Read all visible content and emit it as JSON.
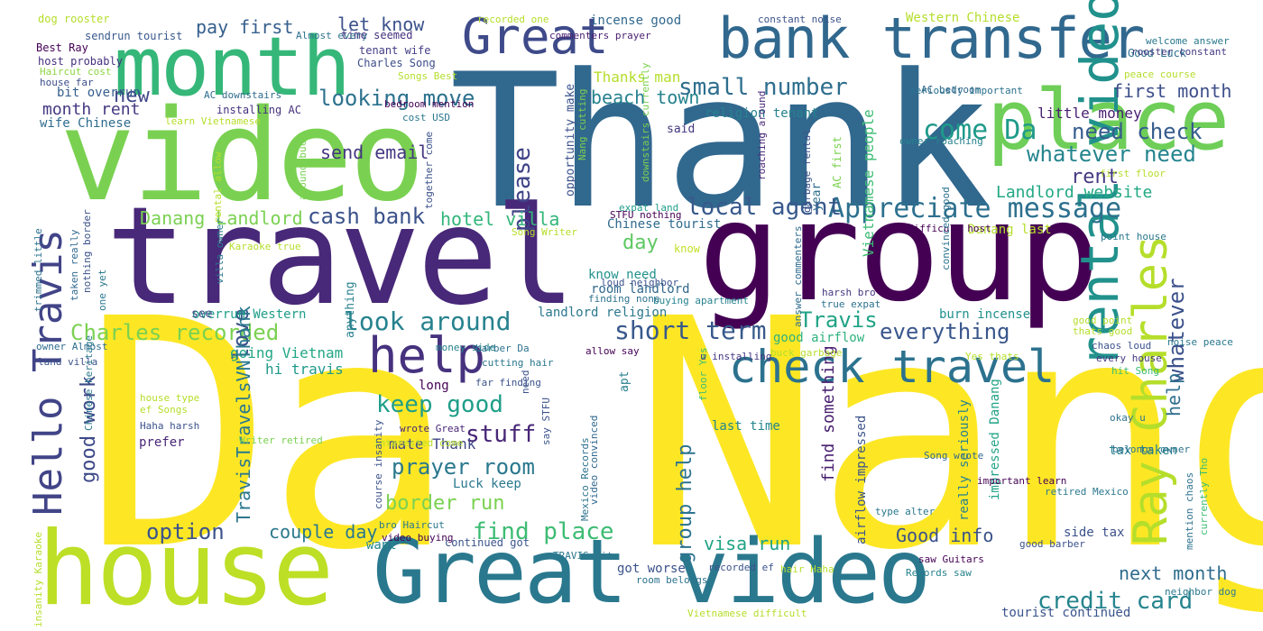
{
  "words": [
    {
      "text": "Da Nang",
      "color": "#fde725"
    },
    {
      "text": "Thank",
      "color": "#31688e"
    },
    {
      "text": "travel",
      "color": "#482878"
    },
    {
      "text": "group",
      "color": "#440154"
    },
    {
      "text": "video",
      "color": "#7ad151"
    },
    {
      "text": "house",
      "color": "#bddf26"
    },
    {
      "text": "Great video",
      "color": "#2a788e"
    },
    {
      "text": "month",
      "color": "#35b779"
    },
    {
      "text": "place",
      "color": "#6ece58"
    },
    {
      "text": "bank transfer",
      "color": "#31688e"
    },
    {
      "text": "rental video",
      "color": "#21918c"
    },
    {
      "text": "Great",
      "color": "#3e4a89"
    },
    {
      "text": "check travel",
      "color": "#2c728e"
    },
    {
      "text": "Ray Charles",
      "color": "#b5de2b"
    },
    {
      "text": "Hello Travis",
      "color": "#414487"
    },
    {
      "text": "help",
      "color": "#46327e"
    },
    {
      "text": "Appreciate message",
      "color": "#2d708e"
    },
    {
      "text": "look around",
      "color": "#26828e"
    },
    {
      "text": "short term",
      "color": "#38598c"
    },
    {
      "text": "keep good",
      "color": "#1f9e89"
    },
    {
      "text": "Charles recorded",
      "color": "#7ad151"
    },
    {
      "text": "credit card",
      "color": "#25848e"
    },
    {
      "text": "small number",
      "color": "#2e6e8e"
    },
    {
      "text": "looking move",
      "color": "#2c728e"
    },
    {
      "text": "whatever need",
      "color": "#25858e"
    },
    {
      "text": "local agent",
      "color": "#38598c"
    },
    {
      "text": "need check",
      "color": "#365c8d"
    },
    {
      "text": "prayer room",
      "color": "#2a788e"
    },
    {
      "text": "find place",
      "color": "#3dbc74"
    },
    {
      "text": "border run",
      "color": "#7ad151"
    },
    {
      "text": "option",
      "color": "#3b528b"
    },
    {
      "text": "come Da",
      "color": "#1f9a8a"
    },
    {
      "text": "please",
      "color": "#414487"
    },
    {
      "text": "cash bank",
      "color": "#3b528b"
    },
    {
      "text": "stuff",
      "color": "#482677"
    },
    {
      "text": "good work",
      "color": "#3e4989"
    },
    {
      "text": "group help",
      "color": "#2c738e"
    },
    {
      "text": "everything",
      "color": "#39568c"
    },
    {
      "text": "Travis",
      "color": "#20a386"
    },
    {
      "text": "love",
      "color": "#3a538b"
    },
    {
      "text": "day",
      "color": "#5ec962"
    },
    {
      "text": "rent",
      "color": "#443a83"
    },
    {
      "text": "Good info",
      "color": "#3b528b"
    },
    {
      "text": "visa run",
      "color": "#20a386"
    },
    {
      "text": "next month",
      "color": "#2f6c8e"
    },
    {
      "text": "couple day",
      "color": "#2a788e"
    },
    {
      "text": "first month",
      "color": "#3d4e8a"
    },
    {
      "text": "Danang Landlord",
      "color": "#7ad151"
    },
    {
      "text": "Landlord website",
      "color": "#22a884"
    },
    {
      "text": "hotel villa",
      "color": "#32b67a"
    },
    {
      "text": "whatever",
      "color": "#3b518b"
    },
    {
      "text": "help",
      "color": "#2e6f8e"
    },
    {
      "text": "new",
      "color": "#3f4788"
    },
    {
      "text": "pay first",
      "color": "#355f8d"
    },
    {
      "text": "let know",
      "color": "#3b528b"
    },
    {
      "text": "beach town",
      "color": "#26828e"
    },
    {
      "text": "Thanks man",
      "color": "#b5de2b"
    },
    {
      "text": "little money",
      "color": "#481f70"
    },
    {
      "text": "send email",
      "color": "#453781"
    },
    {
      "text": "month rent",
      "color": "#453882"
    },
    {
      "text": "bit overrun",
      "color": "#355e8d"
    },
    {
      "text": "wife Chinese",
      "color": "#2f6c8e"
    },
    {
      "text": "going Vietnam",
      "color": "#22a785"
    },
    {
      "text": "hi travis",
      "color": "#1f9a8a"
    },
    {
      "text": "mate Thank",
      "color": "#3f4788"
    },
    {
      "text": "TravisTravelsVNThank",
      "color": "#2a788e"
    },
    {
      "text": "Vietnamese people",
      "color": "#3dbc74"
    },
    {
      "text": "find something",
      "color": "#481f70"
    },
    {
      "text": "know need",
      "color": "#21918c"
    },
    {
      "text": "room landlord",
      "color": "#31688e"
    },
    {
      "text": "Chinese tourist",
      "color": "#2f6b8e"
    },
    {
      "text": "tax taken",
      "color": "#277f8e"
    },
    {
      "text": "side tax",
      "color": "#3b528b"
    },
    {
      "text": "tourist continued",
      "color": "#3a548c"
    },
    {
      "text": "got worse",
      "color": "#3b528b"
    },
    {
      "text": "last time",
      "color": "#24868e"
    },
    {
      "text": "Good Luck",
      "color": "#2c728e"
    },
    {
      "text": "Western Chinese",
      "color": "#b5de2b"
    },
    {
      "text": "religion tenant",
      "color": "#26828e"
    },
    {
      "text": "incense good",
      "color": "#31688e"
    },
    {
      "text": "tenant wife",
      "color": "#433e85"
    },
    {
      "text": "time seemed",
      "color": "#46307e"
    },
    {
      "text": "Charles Song",
      "color": "#3d4d8a"
    },
    {
      "text": "installing AC",
      "color": "#46327e"
    },
    {
      "text": "Danang last",
      "color": "#b5de2b"
    },
    {
      "text": "burn incense",
      "color": "#21918c"
    },
    {
      "text": "landlord religion",
      "color": "#2a788e"
    },
    {
      "text": "overrun Western",
      "color": "#1f9e89"
    },
    {
      "text": "good airflow",
      "color": "#2db27d"
    },
    {
      "text": "airflow impressed",
      "color": "#3a538b"
    },
    {
      "text": "impressed Danang",
      "color": "#20a386"
    },
    {
      "text": "really seriously",
      "color": "#27808e"
    },
    {
      "text": "Luck keep",
      "color": "#2a788e"
    },
    {
      "text": "prefer",
      "color": "#482677"
    },
    {
      "text": "continued got",
      "color": "#3a548c"
    },
    {
      "text": "want",
      "color": "#24868e"
    },
    {
      "text": "long",
      "color": "#440154"
    },
    {
      "text": "see",
      "color": "#404688"
    },
    {
      "text": "year",
      "color": "#2e6e8e"
    },
    {
      "text": "said",
      "color": "#453781"
    },
    {
      "text": "apt",
      "color": "#277f8e"
    },
    {
      "text": "know",
      "color": "#c2df23"
    },
    {
      "text": "anything",
      "color": "#27808e"
    },
    {
      "text": "dog rooster",
      "color": "#b5de2b"
    },
    {
      "text": "sendrun tourist",
      "color": "#38598c"
    },
    {
      "text": "Best Ray",
      "color": "#440154"
    },
    {
      "text": "host probably",
      "color": "#46307e"
    },
    {
      "text": "Haircut cost",
      "color": "#8fd744"
    },
    {
      "text": "house far",
      "color": "#3d4e8a"
    },
    {
      "text": "recorded one",
      "color": "#b5de2b"
    },
    {
      "text": "commenters prayer",
      "color": "#481f70"
    },
    {
      "text": "Almost every",
      "color": "#2d708e"
    },
    {
      "text": "constant noise",
      "color": "#3b528b"
    },
    {
      "text": "welcome answer",
      "color": "#2a788e"
    },
    {
      "text": "rooster constant",
      "color": "#443a83"
    },
    {
      "text": "peace course",
      "color": "#b5de2b"
    },
    {
      "text": "AC bedroom",
      "color": "#31688e"
    },
    {
      "text": "seriously important",
      "color": "#2c728e"
    },
    {
      "text": "cost USD",
      "color": "#2a788e"
    },
    {
      "text": "bedroom mention",
      "color": "#440154"
    },
    {
      "text": "learn Vietnamese",
      "color": "#b5de2b"
    },
    {
      "text": "Songs Best",
      "color": "#b5de2b"
    },
    {
      "text": "AC downstairs",
      "color": "#2f6c8e"
    },
    {
      "text": "opportunity make",
      "color": "#3b528b"
    },
    {
      "text": "Nang cutting",
      "color": "#7ad151"
    },
    {
      "text": "expat land",
      "color": "#1f9e89"
    },
    {
      "text": "STFU nothing",
      "color": "#440154"
    },
    {
      "text": "downstairs currently",
      "color": "#7ad151"
    },
    {
      "text": "garbage rental",
      "color": "#3b528b"
    },
    {
      "text": "roaching around",
      "color": "#482677"
    },
    {
      "text": "AC first",
      "color": "#7ad151"
    },
    {
      "text": "first floor",
      "color": "#b5de2b"
    },
    {
      "text": "owner roaching",
      "color": "#26828e"
    },
    {
      "text": "difficult host",
      "color": "#440154"
    },
    {
      "text": "point house",
      "color": "#2a788e"
    },
    {
      "text": "convinced good",
      "color": "#2c728e"
    },
    {
      "text": "answer commenters",
      "color": "#2f6c8e"
    },
    {
      "text": "harsh bro",
      "color": "#453781"
    },
    {
      "text": "true expat",
      "color": "#2c728e"
    },
    {
      "text": "good point",
      "color": "#b5de2b"
    },
    {
      "text": "thats good",
      "color": "#b5de2b"
    },
    {
      "text": "chaos loud",
      "color": "#3b528b"
    },
    {
      "text": "noise peace",
      "color": "#2a788e"
    },
    {
      "text": "every house",
      "color": "#453781"
    },
    {
      "text": "hit Song",
      "color": "#3dbc74"
    },
    {
      "text": "Yes thats",
      "color": "#b5de2b"
    },
    {
      "text": "buck garbage",
      "color": "#b5de2b"
    },
    {
      "text": "floor Yes",
      "color": "#3dbc74"
    },
    {
      "text": "u installing",
      "color": "#453781"
    },
    {
      "text": "allow say",
      "color": "#440154"
    },
    {
      "text": "buying apartment",
      "color": "#26828e"
    },
    {
      "text": "loud neighbor",
      "color": "#3b528b"
    },
    {
      "text": "finding none",
      "color": "#2c728e"
    },
    {
      "text": "Song Writer",
      "color": "#b5de2b"
    },
    {
      "text": "together come",
      "color": "#3b528b"
    },
    {
      "text": "around buck",
      "color": "#7ad151"
    },
    {
      "text": "rental allow",
      "color": "#b5de2b"
    },
    {
      "text": "villa owner",
      "color": "#2a788e"
    },
    {
      "text": "Karaoke true",
      "color": "#b5de2b"
    },
    {
      "text": "trimmed little",
      "color": "#2c728e"
    },
    {
      "text": "nothing border",
      "color": "#3b528b"
    },
    {
      "text": "taken really",
      "color": "#31688e"
    },
    {
      "text": "one yet",
      "color": "#2a788e"
    },
    {
      "text": "owner Almost",
      "color": "#2f6c8e"
    },
    {
      "text": "land villa",
      "color": "#3b528b"
    },
    {
      "text": "house type",
      "color": "#b5de2b"
    },
    {
      "text": "ef Songs",
      "color": "#b5de2b"
    },
    {
      "text": "Haha harsh",
      "color": "#3b528b"
    },
    {
      "text": "Chinese heritage",
      "color": "#2a788e"
    },
    {
      "text": "Writer retired",
      "color": "#7ad151"
    },
    {
      "text": "insanity Karaoke",
      "color": "#b5de2b"
    },
    {
      "text": "money side",
      "color": "#26828e"
    },
    {
      "text": "barber Da",
      "color": "#2c728e"
    },
    {
      "text": "cutting hair",
      "color": "#2a788e"
    },
    {
      "text": "far finding",
      "color": "#3b528b"
    },
    {
      "text": "need",
      "color": "#3b528b"
    },
    {
      "text": "say STFU",
      "color": "#3b528b"
    },
    {
      "text": "interested come",
      "color": "#b5de2b"
    },
    {
      "text": "wrote Great",
      "color": "#482677"
    },
    {
      "text": "course insanity",
      "color": "#3b528b"
    },
    {
      "text": "bro Haircut",
      "color": "#2a788e"
    },
    {
      "text": "video buying",
      "color": "#440154"
    },
    {
      "text": "Mexico Records",
      "color": "#2c728e"
    },
    {
      "text": "video convinced",
      "color": "#31688e"
    },
    {
      "text": "TRAVIS hit",
      "color": "#2a788e"
    },
    {
      "text": "recorded ef",
      "color": "#3b528b"
    },
    {
      "text": "hair Haha",
      "color": "#b5de2b"
    },
    {
      "text": "Records saw",
      "color": "#26828e"
    },
    {
      "text": "saw Guitars",
      "color": "#440154"
    },
    {
      "text": "room belongs",
      "color": "#2c728e"
    },
    {
      "text": "Vietnamese difficult",
      "color": "#b5de2b"
    },
    {
      "text": "good barber",
      "color": "#3b528b"
    },
    {
      "text": "retired Mexico",
      "color": "#2a788e"
    },
    {
      "text": "belongs owner",
      "color": "#2c728e"
    },
    {
      "text": "okay u",
      "color": "#2c728e"
    },
    {
      "text": "important learn",
      "color": "#440154"
    },
    {
      "text": "Song wrote",
      "color": "#31688e"
    },
    {
      "text": "type alter",
      "color": "#2a788e"
    },
    {
      "text": "mention chaos",
      "color": "#2c728e"
    },
    {
      "text": "currently Tho",
      "color": "#3dbc74"
    },
    {
      "text": "neighbor dog",
      "color": "#2a788e"
    }
  ]
}
